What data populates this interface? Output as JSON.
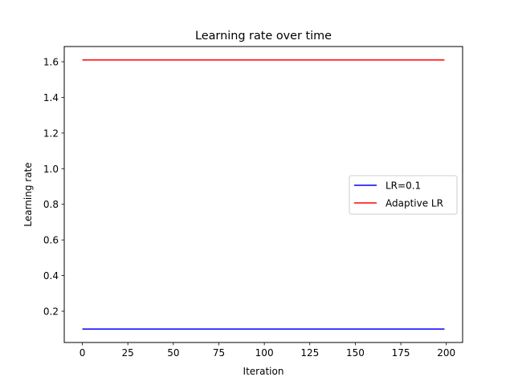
{
  "chart_data": {
    "type": "line",
    "title": "Learning rate over time",
    "xlabel": "Iteration",
    "ylabel": "Learning rate",
    "xlim": [
      -9.95,
      208.95
    ],
    "ylim": [
      0.0245,
      1.6855
    ],
    "xticks": [
      0,
      25,
      50,
      75,
      100,
      125,
      150,
      175,
      200
    ],
    "yticks": [
      0.2,
      0.4,
      0.6,
      0.8,
      1.0,
      1.2,
      1.4,
      1.6
    ],
    "xtick_labels": [
      "0",
      "25",
      "50",
      "75",
      "100",
      "125",
      "150",
      "175",
      "200"
    ],
    "ytick_labels": [
      "0.2",
      "0.4",
      "0.6",
      "0.8",
      "1.0",
      "1.2",
      "1.4",
      "1.6"
    ],
    "grid": false,
    "legend_position": "center-right",
    "series": [
      {
        "name": "LR=0.1",
        "color": "#0000ff",
        "x": [
          0,
          199
        ],
        "y": [
          0.1,
          0.1
        ]
      },
      {
        "name": "Adaptive LR",
        "color": "#ff0000",
        "x": [
          0,
          199
        ],
        "y": [
          1.61,
          1.61
        ]
      }
    ]
  }
}
